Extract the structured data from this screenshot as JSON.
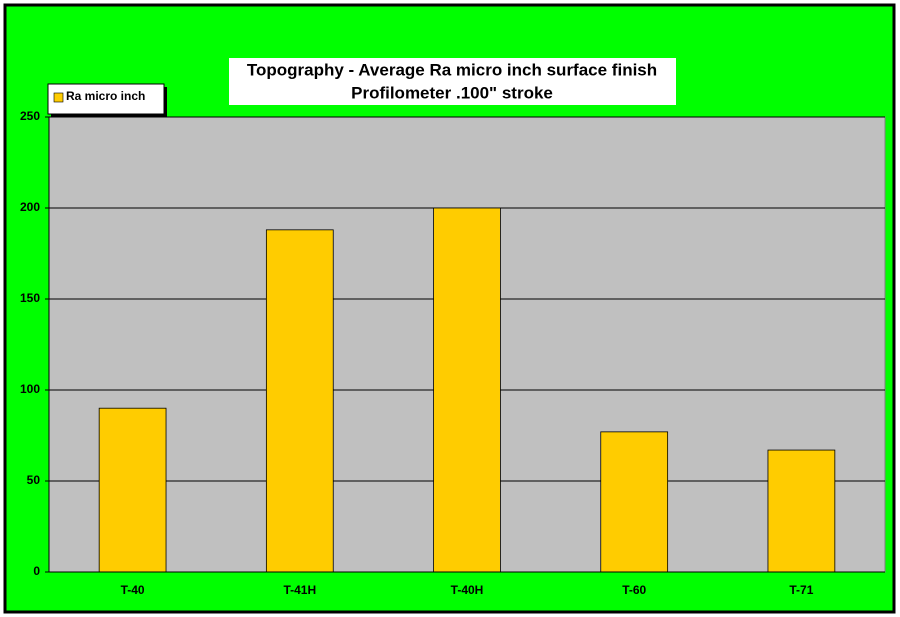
{
  "chart_data": {
    "type": "bar",
    "title": "Topography - Average Ra micro inch surface finish",
    "subtitle": "Profilometer .100\" stroke",
    "categories": [
      "T-40",
      "T-41H",
      "T-40H",
      "T-60",
      "T-71"
    ],
    "series": [
      {
        "name": "Ra micro inch",
        "color": "#ffcc00",
        "values": [
          90,
          188,
          200,
          77,
          67
        ]
      }
    ],
    "ylim": [
      0,
      250
    ],
    "yticks": [
      0,
      50,
      100,
      150,
      200,
      250
    ],
    "grid": true,
    "legend": "top-left",
    "background": "#00ff00",
    "plot_background": "#c0c0c0"
  }
}
